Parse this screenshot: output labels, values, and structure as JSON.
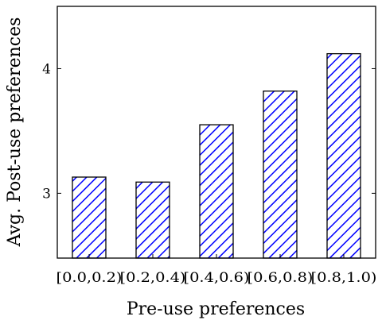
{
  "chart_data": {
    "type": "bar",
    "categories": [
      "[0.0,0.2)",
      "[0.2,0.4)",
      "[0.4,0.6)",
      "[0.6,0.8)",
      "[0.8,1.0)"
    ],
    "series": [
      {
        "values": [
          3.13,
          3.09,
          3.55,
          3.82,
          4.12
        ]
      }
    ],
    "xlabel": "Pre-use preferences",
    "ylabel": "Avg. Post-use preferences",
    "ylim": [
      2.48,
      4.5
    ],
    "yticks": [
      3,
      4
    ],
    "ytick_labels": [
      "3",
      "4"
    ],
    "grid": false,
    "bar_style": "diagonal-hatch",
    "colors": {
      "bar_stroke": "#000000",
      "hatch": "#0000ff",
      "axis": "#000000"
    }
  }
}
